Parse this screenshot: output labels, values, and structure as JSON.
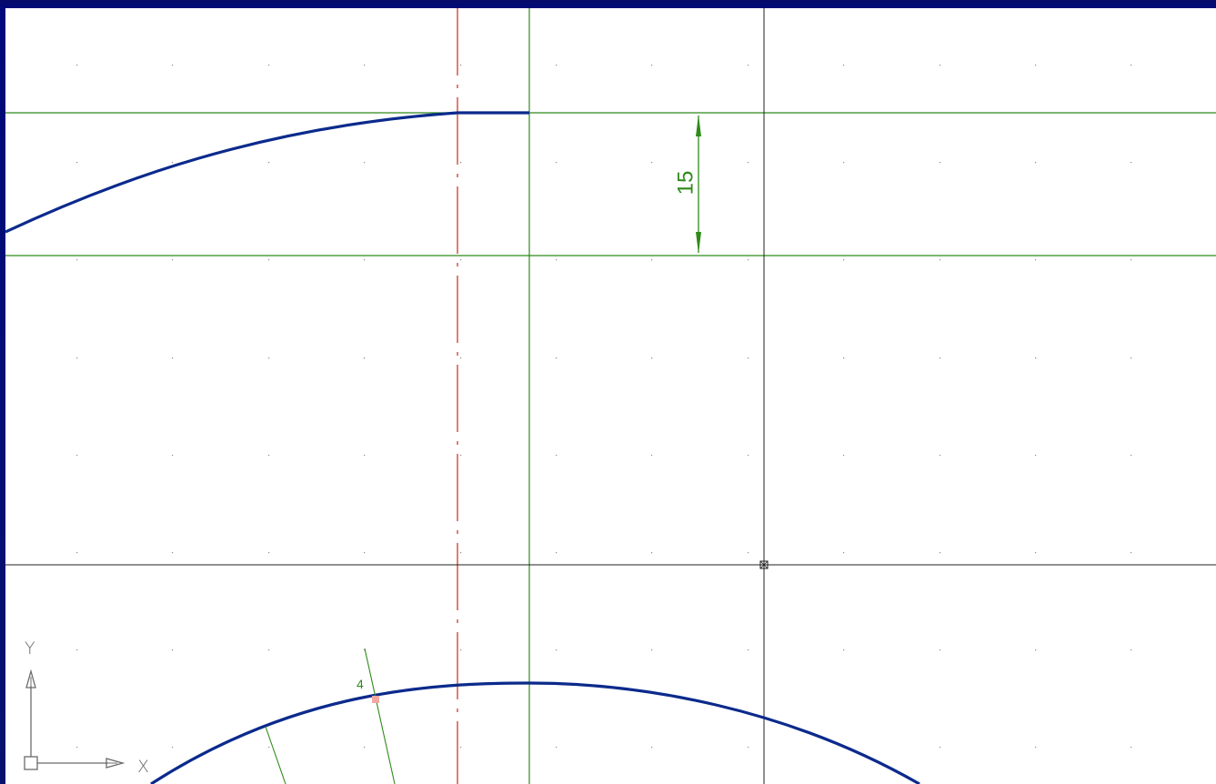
{
  "window": {
    "frame_color": "#0a1478",
    "canvas_color": "#ffffff"
  },
  "drawing": {
    "dimension_value": "15",
    "point_label": "4",
    "colors": {
      "curve": "#0b2a8c",
      "construction": "#2e8b1a",
      "centerline": "#d23a2a",
      "crosshair": "#202020",
      "grid_dot": "#8c8c8c",
      "point_marker": "#f4a7a0"
    }
  },
  "ucs": {
    "x_label": "X",
    "y_label": "Y"
  }
}
